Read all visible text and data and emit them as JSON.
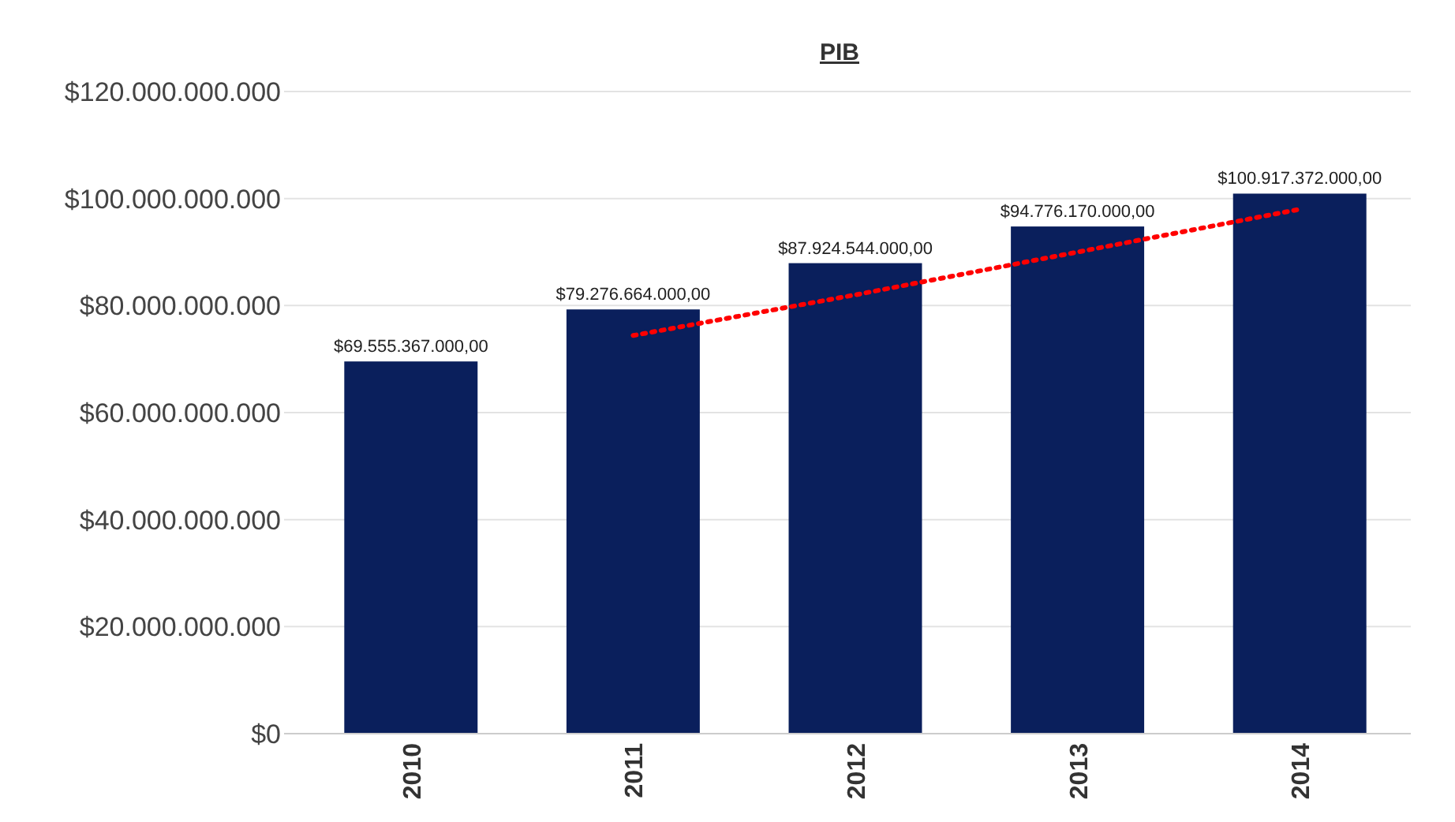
{
  "chart_data": {
    "type": "bar",
    "title": "PIB",
    "categories": [
      "2010",
      "2011",
      "2012",
      "2013",
      "2014"
    ],
    "series": [
      {
        "color": "#0a1f5c",
        "values": [
          69555367000,
          79276664000,
          87924544000,
          94776170000,
          100917372000
        ],
        "value_labels": [
          "$69.555.367.000,00",
          "$79.276.664.000,00",
          "$87.924.544.000,00",
          "$94.776.170.000,00",
          "$100.917.372.000,00"
        ]
      },
      {
        "type": "line",
        "color": "#ff0000",
        "line_style": "dotted",
        "values": [
          null,
          74400000000,
          82000000000,
          90000000000,
          98000000000
        ]
      }
    ],
    "ylim": [
      0,
      120000000000
    ],
    "yticks": [
      {
        "value": 0,
        "label": "$0"
      },
      {
        "value": 20000000000,
        "label": "$20.000.000.000"
      },
      {
        "value": 40000000000,
        "label": "$40.000.000.000"
      },
      {
        "value": 60000000000,
        "label": "$60.000.000.000"
      },
      {
        "value": 80000000000,
        "label": "$80.000.000.000"
      },
      {
        "value": 100000000000,
        "label": "$100.000.000.000"
      },
      {
        "value": 120000000000,
        "label": "$120.000.000.000"
      }
    ],
    "grid": "y"
  }
}
